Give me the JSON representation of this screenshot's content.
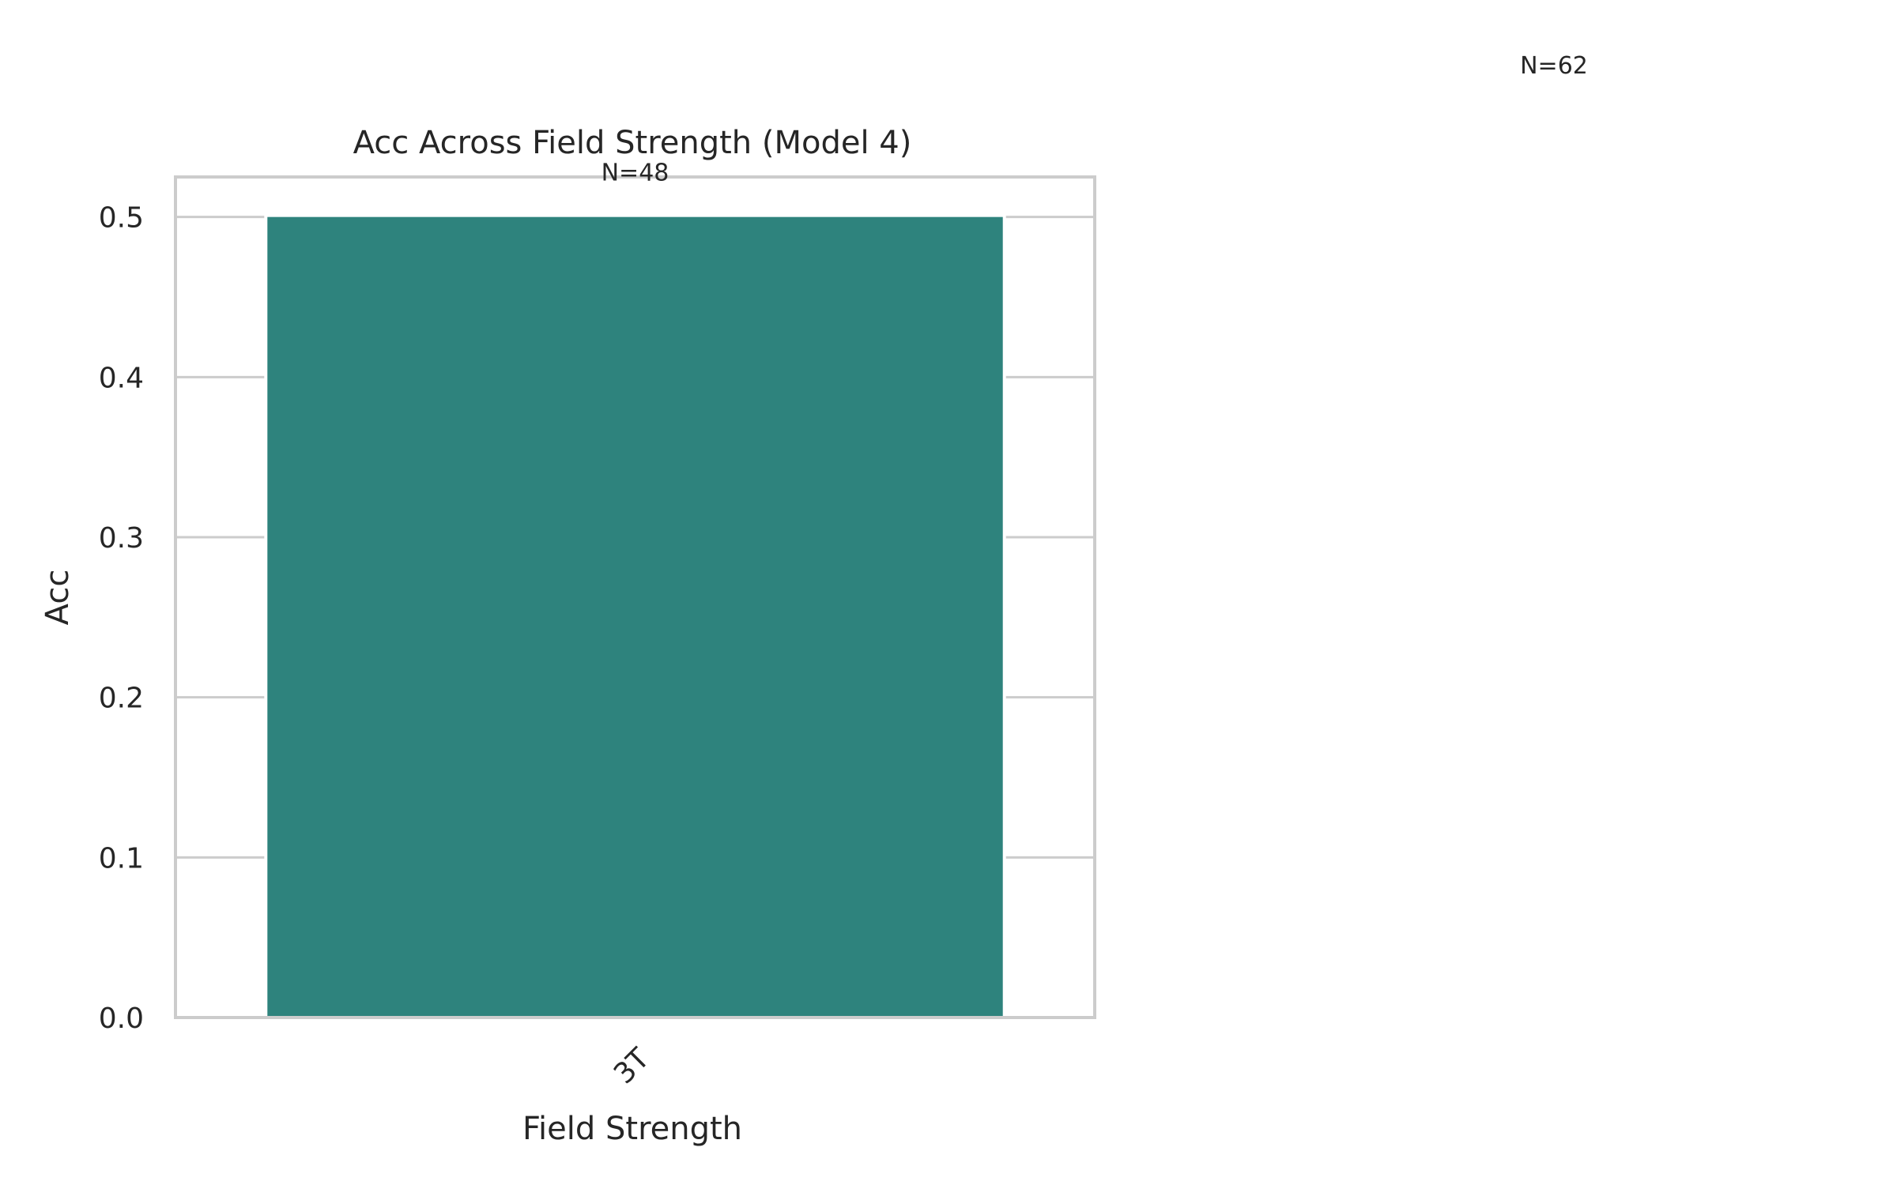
{
  "chart_data": {
    "type": "bar",
    "title": "Acc Across Field Strength (Model 4)",
    "xlabel": "Field Strength",
    "ylabel": "Acc",
    "categories": [
      "3T"
    ],
    "values": [
      0.5
    ],
    "bar_annotations": [
      "N=48"
    ],
    "figure_annotation": "N=62",
    "ylim": [
      0,
      0.525
    ],
    "yticks": [
      0.0,
      0.1,
      0.2,
      0.3,
      0.4,
      0.5
    ],
    "ytick_labels": [
      "0.0",
      "0.1",
      "0.2",
      "0.3",
      "0.4",
      "0.5"
    ],
    "grid": true,
    "xtick_rotation": "45 degrees",
    "bar_color": "#2e837d",
    "grid_color": "#cccccc",
    "spine_color": "#cccccc",
    "text_color": "#262626"
  }
}
